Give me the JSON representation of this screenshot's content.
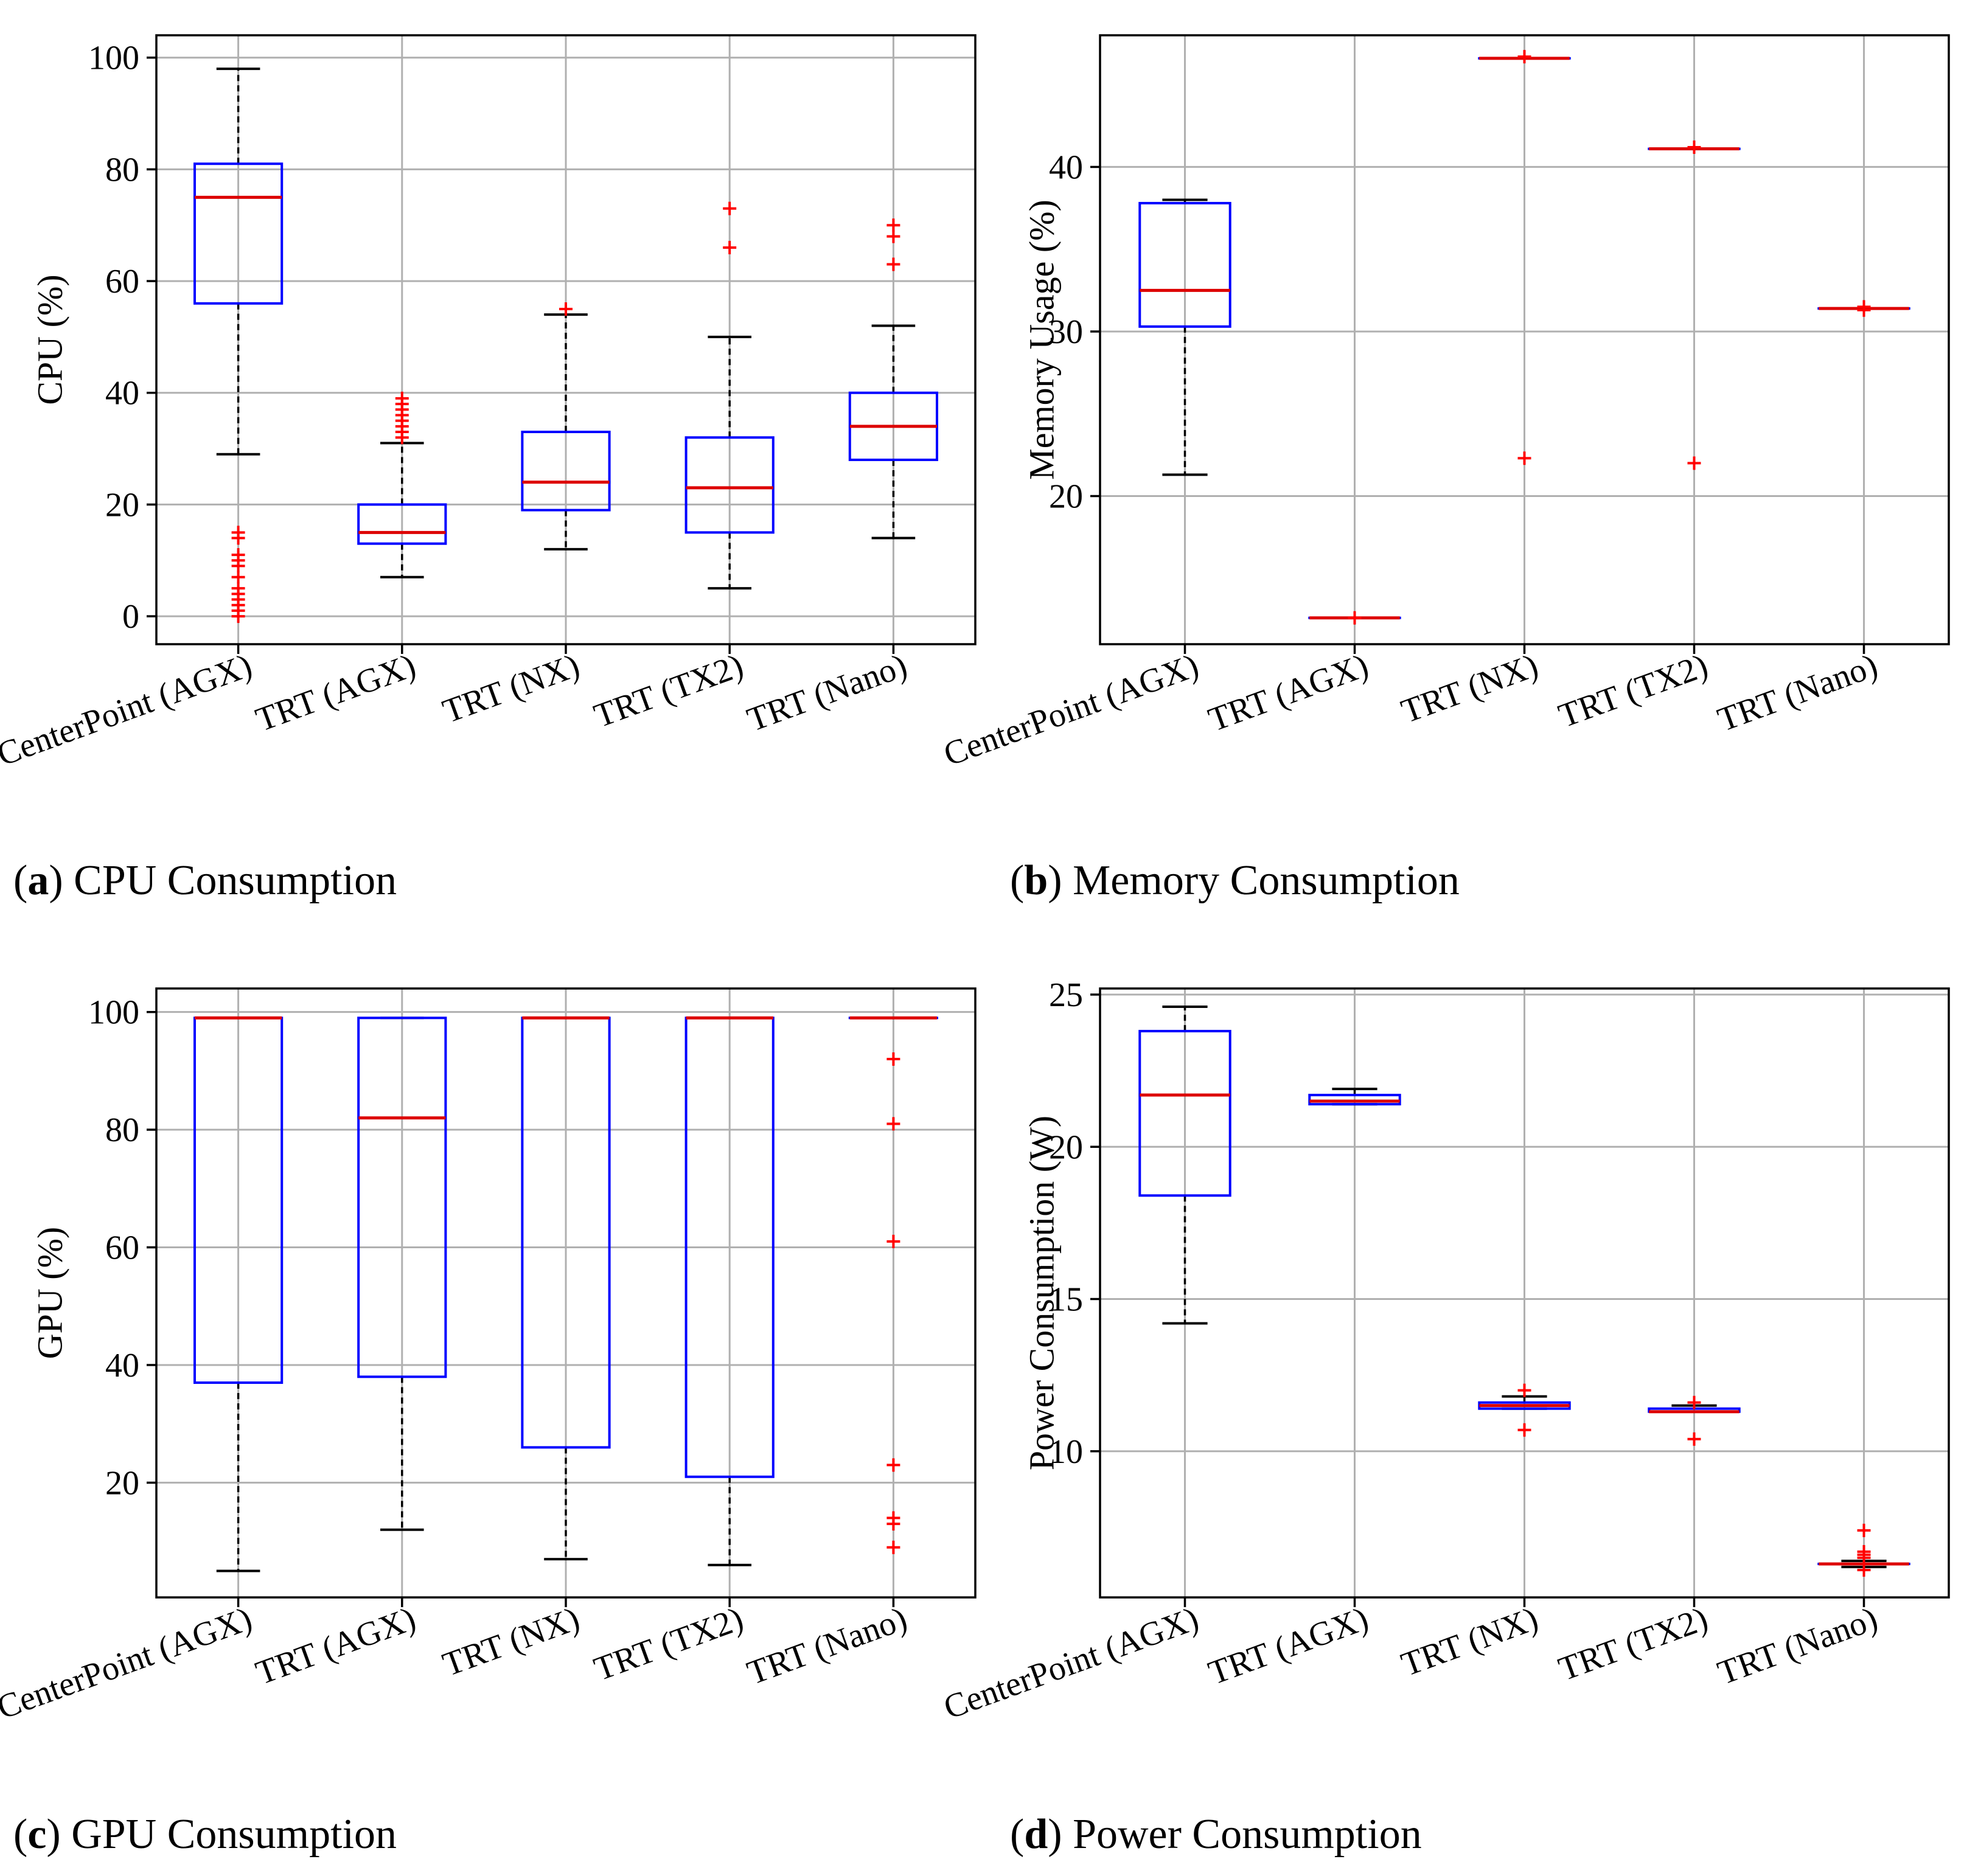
{
  "colors": {
    "box": "#0000ff",
    "median": "#dd0000",
    "whisker": "#000000",
    "outlier": "#ff0000",
    "grid": "#b0b0b0"
  },
  "chart_data": [
    {
      "type": "boxplot",
      "caption": {
        "letter": "a",
        "text": "CPU Consumption"
      },
      "ylabel": "CPU (%)",
      "ylim": [
        -5,
        104
      ],
      "yticks": [
        0,
        20,
        40,
        60,
        80,
        100
      ],
      "grid": true,
      "categories": [
        "CenterPoint (AGX)",
        "TRT (AGX)",
        "TRT (NX)",
        "TRT (TX2)",
        "TRT (Nano)"
      ],
      "boxes": [
        {
          "whislo": 29,
          "q1": 56,
          "med": 75,
          "q3": 81,
          "whishi": 98,
          "fliers": [
            0,
            1,
            2,
            3,
            4,
            5,
            7,
            9,
            10,
            11,
            14,
            15
          ]
        },
        {
          "whislo": 7,
          "q1": 13,
          "med": 15,
          "q3": 20,
          "whishi": 31,
          "fliers": [
            32,
            33,
            34,
            35,
            36,
            37,
            38,
            39
          ]
        },
        {
          "whislo": 12,
          "q1": 19,
          "med": 24,
          "q3": 33,
          "whishi": 54,
          "fliers": [
            55
          ]
        },
        {
          "whislo": 5,
          "q1": 15,
          "med": 23,
          "q3": 32,
          "whishi": 50,
          "fliers": [
            66,
            73
          ]
        },
        {
          "whislo": 14,
          "q1": 28,
          "med": 34,
          "q3": 40,
          "whishi": 52,
          "fliers": [
            63,
            68,
            70
          ]
        }
      ]
    },
    {
      "type": "boxplot",
      "caption": {
        "letter": "b",
        "text": "Memory Consumption"
      },
      "ylabel": "Memory Usage (%)",
      "ylim": [
        11,
        48
      ],
      "yticks": [
        20,
        30,
        40
      ],
      "grid": true,
      "categories": [
        "CenterPoint (AGX)",
        "TRT (AGX)",
        "TRT (NX)",
        "TRT (TX2)",
        "TRT (Nano)"
      ],
      "boxes": [
        {
          "whislo": 21.3,
          "q1": 30.3,
          "med": 32.5,
          "q3": 37.8,
          "whishi": 38.0,
          "fliers": []
        },
        {
          "whislo": 12.6,
          "q1": 12.6,
          "med": 12.6,
          "q3": 12.6,
          "whishi": 12.6,
          "fliers": [
            12.6
          ]
        },
        {
          "whislo": 46.6,
          "q1": 46.6,
          "med": 46.6,
          "q3": 46.6,
          "whishi": 46.6,
          "fliers": [
            22.3,
            46.7
          ]
        },
        {
          "whislo": 41.1,
          "q1": 41.1,
          "med": 41.1,
          "q3": 41.1,
          "whishi": 41.1,
          "fliers": [
            22.0,
            41.2
          ]
        },
        {
          "whislo": 31.4,
          "q1": 31.4,
          "med": 31.4,
          "q3": 31.4,
          "whishi": 31.4,
          "fliers": [
            31.3,
            31.5
          ]
        }
      ]
    },
    {
      "type": "boxplot",
      "caption": {
        "letter": "c",
        "text": "GPU Consumption"
      },
      "ylabel": "GPU (%)",
      "ylim": [
        0.5,
        104
      ],
      "yticks": [
        20,
        40,
        60,
        80,
        100
      ],
      "grid": true,
      "categories": [
        "CenterPoint (AGX)",
        "TRT (AGX)",
        "TRT (NX)",
        "TRT (TX2)",
        "TRT (Nano)"
      ],
      "boxes": [
        {
          "whislo": 5,
          "q1": 37,
          "med": 99,
          "q3": 99,
          "whishi": 99,
          "fliers": []
        },
        {
          "whislo": 12,
          "q1": 38,
          "med": 82,
          "q3": 99,
          "whishi": 99,
          "fliers": []
        },
        {
          "whislo": 7,
          "q1": 26,
          "med": 99,
          "q3": 99,
          "whishi": 99,
          "fliers": []
        },
        {
          "whislo": 6,
          "q1": 21,
          "med": 99,
          "q3": 99,
          "whishi": 99,
          "fliers": []
        },
        {
          "whislo": 99,
          "q1": 99,
          "med": 99,
          "q3": 99,
          "whishi": 99,
          "fliers": [
            9,
            13,
            14,
            23,
            61,
            81,
            92
          ]
        }
      ]
    },
    {
      "type": "boxplot",
      "caption": {
        "letter": "d",
        "text": "Power Consumption"
      },
      "ylabel": "Power Consumption (W)",
      "ylim": [
        5.2,
        25.2
      ],
      "yticks": [
        10,
        15,
        20,
        25
      ],
      "grid": true,
      "categories": [
        "CenterPoint (AGX)",
        "TRT (AGX)",
        "TRT (NX)",
        "TRT (TX2)",
        "TRT (Nano)"
      ],
      "boxes": [
        {
          "whislo": 14.2,
          "q1": 18.4,
          "med": 21.7,
          "q3": 23.8,
          "whishi": 24.6,
          "fliers": []
        },
        {
          "whislo": 21.4,
          "q1": 21.4,
          "med": 21.5,
          "q3": 21.7,
          "whishi": 21.9,
          "fliers": []
        },
        {
          "whislo": 11.4,
          "q1": 11.4,
          "med": 11.5,
          "q3": 11.6,
          "whishi": 11.8,
          "fliers": [
            10.7,
            12.0
          ]
        },
        {
          "whislo": 11.3,
          "q1": 11.3,
          "med": 11.3,
          "q3": 11.4,
          "whishi": 11.5,
          "fliers": [
            10.4,
            11.6
          ]
        },
        {
          "whislo": 6.2,
          "q1": 6.3,
          "med": 6.3,
          "q3": 6.3,
          "whishi": 6.4,
          "fliers": [
            6.1,
            6.5,
            6.6,
            6.7,
            7.4
          ]
        }
      ]
    }
  ]
}
